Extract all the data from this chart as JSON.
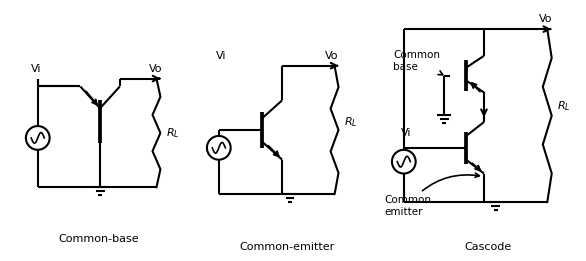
{
  "bg_color": "#ffffff",
  "line_color": "#000000",
  "lw": 1.5,
  "figsize": [
    5.86,
    2.61
  ],
  "dpi": 100,
  "labels": {
    "cb_title": "Common-base",
    "ce_title": "Common-emitter",
    "cascode_title": "Cascode",
    "vi": "Vi",
    "vo": "Vo",
    "rl": "$R_L$",
    "common_base": "Common\nbase",
    "common_emitter": "Common\nemitter"
  }
}
